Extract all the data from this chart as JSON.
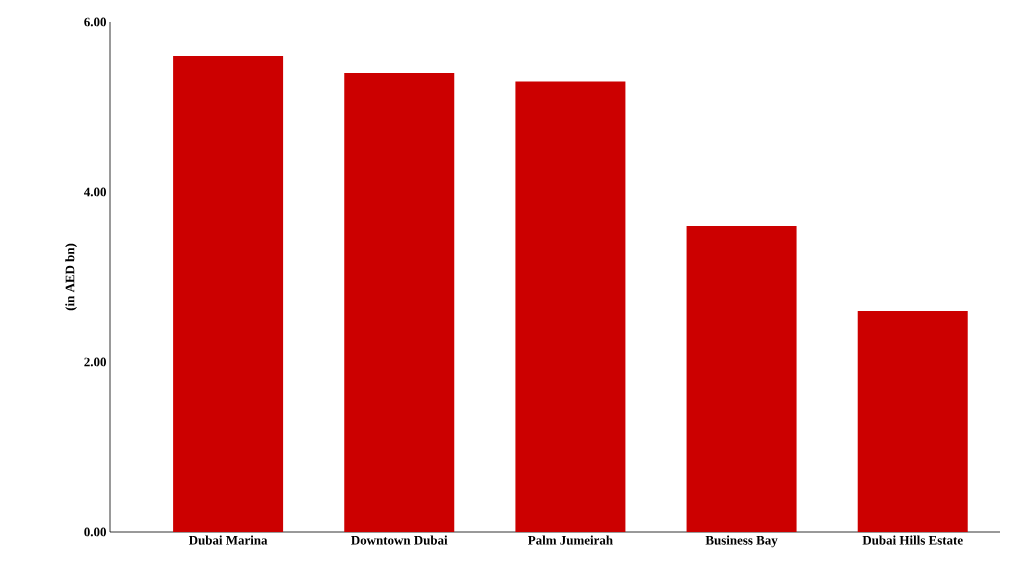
{
  "chart_data": {
    "type": "bar",
    "ylabel": "(in AED bn)",
    "categories": [
      "Dubai Marina",
      "Downtown Dubai",
      "Palm Jumeirah",
      "Business Bay",
      "Dubai Hills Estate"
    ],
    "values": [
      5.6,
      5.4,
      5.3,
      3.6,
      2.6
    ],
    "color": "#cc0000",
    "ylim": [
      0,
      6
    ],
    "yticks": [
      {
        "value": 0,
        "label": "0.00"
      },
      {
        "value": 2,
        "label": "2.00"
      },
      {
        "value": 4,
        "label": "4.00"
      },
      {
        "value": 6,
        "label": "6.00"
      }
    ]
  }
}
